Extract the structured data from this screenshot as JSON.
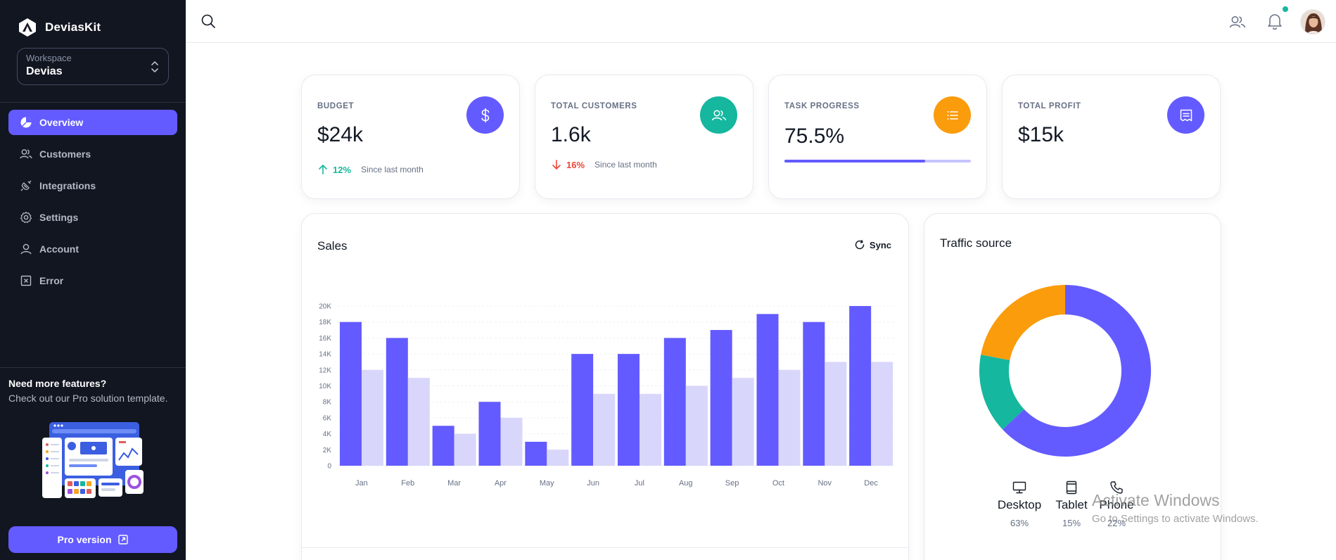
{
  "brand": {
    "name": "DeviasKit"
  },
  "workspace": {
    "label": "Workspace",
    "value": "Devias"
  },
  "nav": {
    "items": [
      {
        "label": "Overview",
        "icon": "chart-pie-icon",
        "active": true
      },
      {
        "label": "Customers",
        "icon": "users-icon"
      },
      {
        "label": "Integrations",
        "icon": "plugs-icon"
      },
      {
        "label": "Settings",
        "icon": "gear-icon"
      },
      {
        "label": "Account",
        "icon": "user-icon"
      },
      {
        "label": "Error",
        "icon": "x-square-icon"
      }
    ]
  },
  "promo": {
    "title": "Need more features?",
    "text": "Check out our Pro solution template.",
    "button_label": "Pro version"
  },
  "kpis": [
    {
      "label": "BUDGET",
      "value": "$24k",
      "trend_pct": "12%",
      "trend_dir": "up",
      "trend_note": "Since last month",
      "icon": "dollar-icon",
      "color": "#635bff"
    },
    {
      "label": "TOTAL CUSTOMERS",
      "value": "1.6k",
      "trend_pct": "16%",
      "trend_dir": "down",
      "trend_note": "Since last month",
      "icon": "users-icon",
      "color": "#15b79e"
    },
    {
      "label": "TASK PROGRESS",
      "value": "75.5%",
      "progress": 75.5,
      "icon": "list-icon",
      "color": "#fb9c0c"
    },
    {
      "label": "TOTAL PROFIT",
      "value": "$15k",
      "icon": "receipt-icon",
      "color": "#635bff"
    }
  ],
  "sales": {
    "title": "Sales",
    "sync_label": "Sync"
  },
  "chart_data": [
    {
      "type": "bar",
      "title": "Sales",
      "categories": [
        "Jan",
        "Feb",
        "Mar",
        "Apr",
        "May",
        "Jun",
        "Jul",
        "Aug",
        "Sep",
        "Oct",
        "Nov",
        "Dec"
      ],
      "series": [
        {
          "values": [
            18,
            16,
            5,
            8,
            3,
            14,
            14,
            16,
            17,
            19,
            18,
            20
          ],
          "color": "#635bff"
        },
        {
          "values": [
            12,
            11,
            4,
            6,
            2,
            9,
            9,
            10,
            11,
            12,
            13,
            13
          ],
          "color": "#d9d6fb"
        }
      ],
      "yticks": [
        "0",
        "2K",
        "4K",
        "6K",
        "8K",
        "10K",
        "12K",
        "14K",
        "16K",
        "18K",
        "20K"
      ],
      "ylim": [
        0,
        20
      ],
      "grid": true
    },
    {
      "type": "pie",
      "title": "Traffic source",
      "labels": [
        "Desktop",
        "Tablet",
        "Phone"
      ],
      "values": [
        63,
        15,
        22
      ],
      "percent_labels": [
        "63%",
        "15%",
        "22%"
      ],
      "colors": [
        "#635bff",
        "#15b79e",
        "#fb9c0c"
      ],
      "icons": [
        "desktop-icon",
        "tablet-icon",
        "phone-icon"
      ]
    }
  ],
  "watermark": {
    "line1": "Activate Windows",
    "line2": "Go to Settings to activate Windows."
  }
}
